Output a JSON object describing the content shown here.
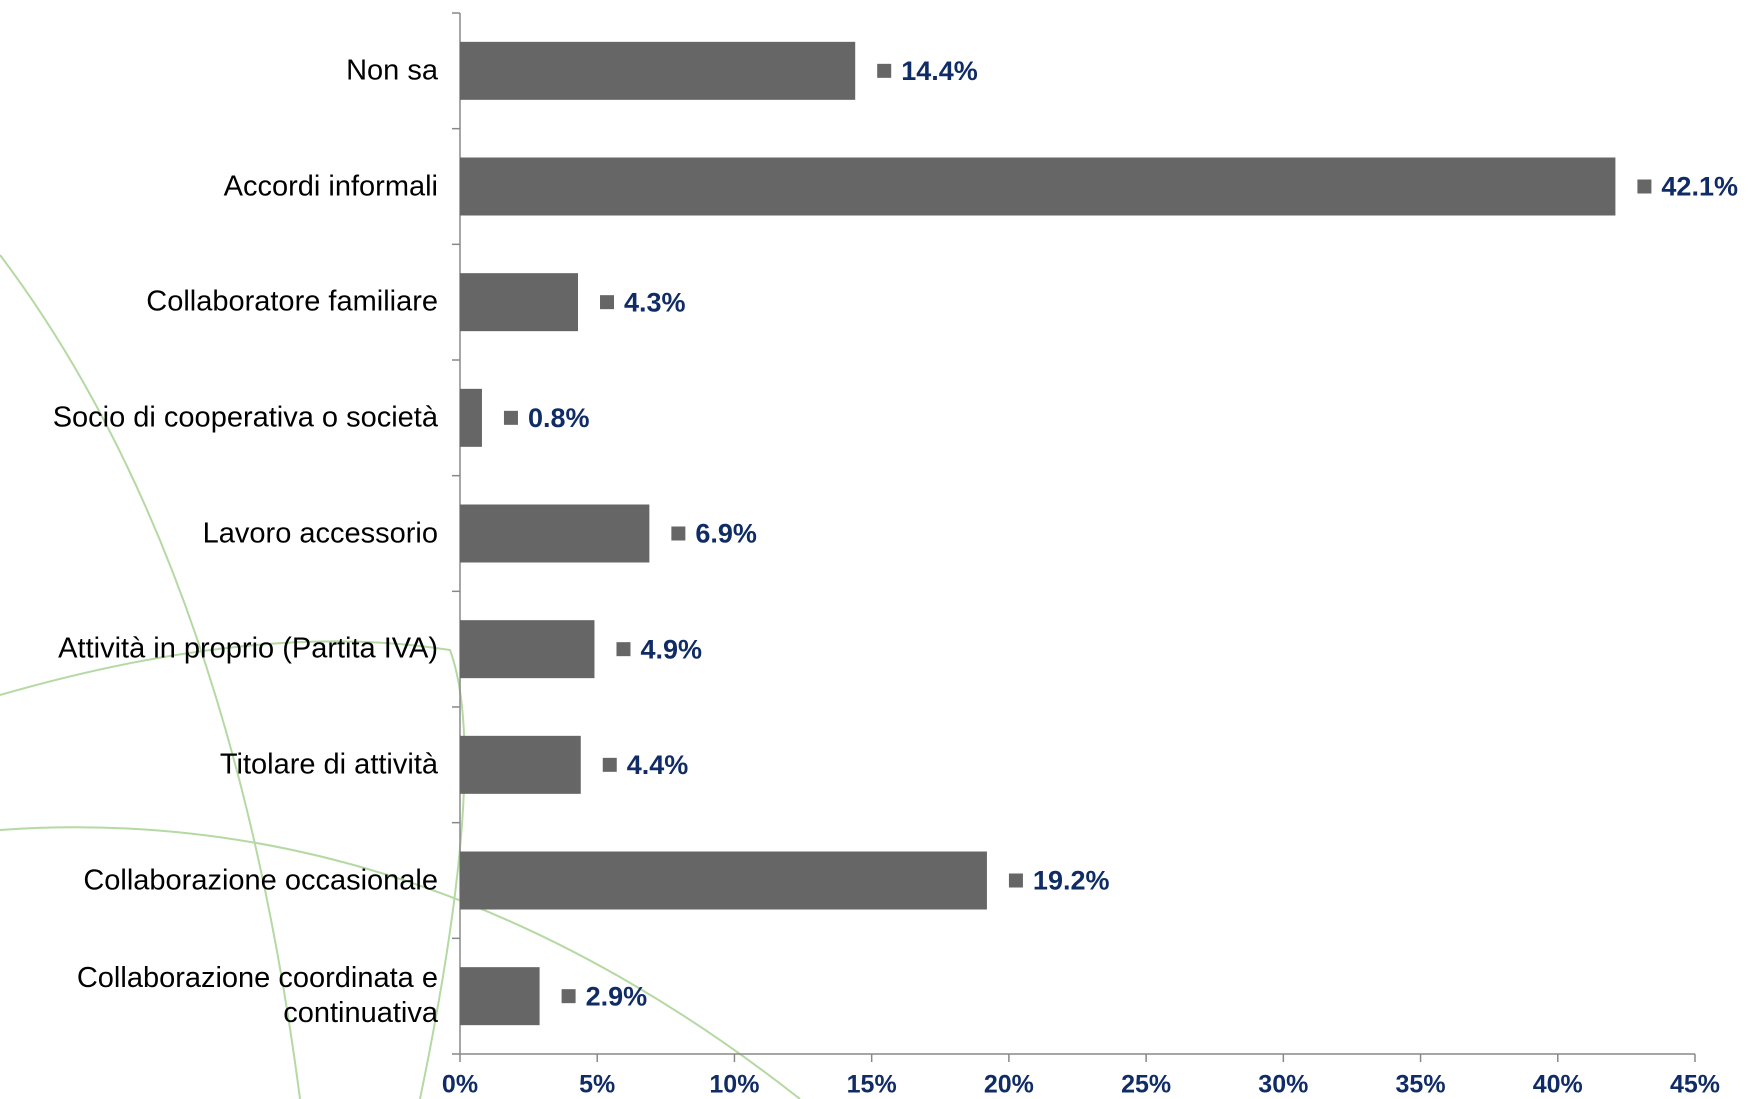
{
  "chart_data": {
    "type": "bar",
    "orientation": "horizontal",
    "categories": [
      "Non sa",
      "Accordi informali",
      "Collaboratore familiare",
      "Socio di cooperativa o società",
      "Lavoro accessorio",
      "Attività in proprio (Partita IVA)",
      "Titolare di attività",
      "Collaborazione occasionale",
      "Collaborazione coordinata e continuativa"
    ],
    "values": [
      14.4,
      42.1,
      4.3,
      0.8,
      6.9,
      4.9,
      4.4,
      19.2,
      2.9
    ],
    "value_labels": [
      "14.4%",
      "42.1%",
      "4.3%",
      "0.8%",
      "6.9%",
      "4.9%",
      "4.4%",
      "19.2%",
      "2.9%"
    ],
    "color": "#666666",
    "xlim": [
      0,
      45
    ],
    "xticks": [
      {
        "value": 0,
        "label": "0%"
      },
      {
        "value": 5,
        "label": "5%"
      },
      {
        "value": 10,
        "label": "10%"
      },
      {
        "value": 15,
        "label": "15%"
      },
      {
        "value": 20,
        "label": "20%"
      },
      {
        "value": 25,
        "label": "25%"
      },
      {
        "value": 30,
        "label": "30%"
      },
      {
        "value": 35,
        "label": "35%"
      },
      {
        "value": 40,
        "label": "40%"
      },
      {
        "value": 45,
        "label": "45%"
      }
    ],
    "grid": false
  }
}
